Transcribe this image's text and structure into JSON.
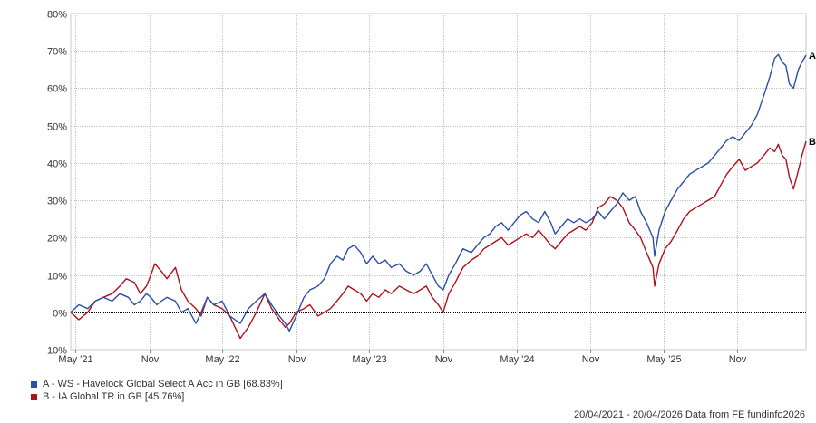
{
  "chart_data": {
    "type": "line",
    "title": "",
    "xlabel": "",
    "ylabel": "",
    "ylim": [
      -10,
      80
    ],
    "y_unit": "%",
    "yticks": [
      -10,
      0,
      10,
      20,
      30,
      40,
      50,
      60,
      70,
      80
    ],
    "ytick_labels": [
      "-10%",
      "0%",
      "10%",
      "20%",
      "30%",
      "40%",
      "50%",
      "60%",
      "70%",
      "80%"
    ],
    "xlim": [
      "2021-04-20",
      "2026-04-20"
    ],
    "xticks": [
      {
        "date": "2021-05-01",
        "label": "May '21"
      },
      {
        "date": "2021-11-01",
        "label": "Nov"
      },
      {
        "date": "2022-05-01",
        "label": "May '22"
      },
      {
        "date": "2022-11-01",
        "label": "Nov"
      },
      {
        "date": "2023-05-01",
        "label": "May '23"
      },
      {
        "date": "2023-11-01",
        "label": "Nov"
      },
      {
        "date": "2024-05-01",
        "label": "May '24"
      },
      {
        "date": "2024-11-01",
        "label": "Nov"
      },
      {
        "date": "2025-05-01",
        "label": "May '25"
      },
      {
        "date": "2025-11-01",
        "label": "Nov"
      }
    ],
    "grid": true,
    "zero_line": true,
    "legend_position": "bottom-left",
    "series": [
      {
        "name": "A - WS - Havelock Global Select A Acc in GB [68.83%]",
        "end_marker": "A",
        "color": "#2a4fa8",
        "points": [
          [
            "2021-04-20",
            0
          ],
          [
            "2021-05-10",
            2
          ],
          [
            "2021-06-01",
            1
          ],
          [
            "2021-06-20",
            3
          ],
          [
            "2021-07-10",
            4
          ],
          [
            "2021-08-01",
            3
          ],
          [
            "2021-08-20",
            5
          ],
          [
            "2021-09-10",
            4
          ],
          [
            "2021-09-25",
            2
          ],
          [
            "2021-10-10",
            3
          ],
          [
            "2021-10-25",
            5
          ],
          [
            "2021-11-05",
            4
          ],
          [
            "2021-11-20",
            2
          ],
          [
            "2021-12-01",
            3
          ],
          [
            "2021-12-15",
            4
          ],
          [
            "2022-01-05",
            3
          ],
          [
            "2022-01-20",
            0
          ],
          [
            "2022-02-05",
            1
          ],
          [
            "2022-02-25",
            -3
          ],
          [
            "2022-03-10",
            0
          ],
          [
            "2022-03-25",
            4
          ],
          [
            "2022-04-10",
            2
          ],
          [
            "2022-05-01",
            3
          ],
          [
            "2022-05-20",
            -1
          ],
          [
            "2022-06-15",
            -3
          ],
          [
            "2022-07-05",
            1
          ],
          [
            "2022-07-25",
            3
          ],
          [
            "2022-08-15",
            5
          ],
          [
            "2022-09-01",
            2
          ],
          [
            "2022-09-20",
            -1
          ],
          [
            "2022-10-05",
            -3
          ],
          [
            "2022-10-15",
            -5
          ],
          [
            "2022-11-01",
            -1
          ],
          [
            "2022-11-20",
            4
          ],
          [
            "2022-12-05",
            6
          ],
          [
            "2022-12-25",
            7
          ],
          [
            "2023-01-10",
            9
          ],
          [
            "2023-01-25",
            13
          ],
          [
            "2023-02-10",
            15
          ],
          [
            "2023-02-25",
            14
          ],
          [
            "2023-03-10",
            17
          ],
          [
            "2023-03-25",
            18
          ],
          [
            "2023-04-10",
            16
          ],
          [
            "2023-04-25",
            13
          ],
          [
            "2023-05-10",
            15
          ],
          [
            "2023-05-25",
            13
          ],
          [
            "2023-06-10",
            14
          ],
          [
            "2023-06-25",
            12
          ],
          [
            "2023-07-15",
            13
          ],
          [
            "2023-08-01",
            11
          ],
          [
            "2023-08-20",
            10
          ],
          [
            "2023-09-05",
            11
          ],
          [
            "2023-09-20",
            13
          ],
          [
            "2023-10-05",
            10
          ],
          [
            "2023-10-20",
            7
          ],
          [
            "2023-11-01",
            6
          ],
          [
            "2023-11-15",
            10
          ],
          [
            "2023-12-01",
            13
          ],
          [
            "2023-12-20",
            17
          ],
          [
            "2024-01-10",
            16
          ],
          [
            "2024-01-25",
            18
          ],
          [
            "2024-02-10",
            20
          ],
          [
            "2024-02-25",
            21
          ],
          [
            "2024-03-10",
            23
          ],
          [
            "2024-03-25",
            24
          ],
          [
            "2024-04-10",
            22
          ],
          [
            "2024-04-25",
            24
          ],
          [
            "2024-05-10",
            26
          ],
          [
            "2024-05-25",
            27
          ],
          [
            "2024-06-10",
            25
          ],
          [
            "2024-06-25",
            24
          ],
          [
            "2024-07-10",
            27
          ],
          [
            "2024-07-25",
            24
          ],
          [
            "2024-08-05",
            21
          ],
          [
            "2024-08-20",
            23
          ],
          [
            "2024-09-05",
            25
          ],
          [
            "2024-09-20",
            24
          ],
          [
            "2024-10-05",
            25
          ],
          [
            "2024-10-20",
            24
          ],
          [
            "2024-11-05",
            25
          ],
          [
            "2024-11-20",
            27
          ],
          [
            "2024-12-05",
            25
          ],
          [
            "2024-12-20",
            27
          ],
          [
            "2025-01-05",
            29
          ],
          [
            "2025-01-20",
            32
          ],
          [
            "2025-02-05",
            30
          ],
          [
            "2025-02-20",
            31
          ],
          [
            "2025-03-05",
            27
          ],
          [
            "2025-03-20",
            24
          ],
          [
            "2025-04-05",
            20
          ],
          [
            "2025-04-09",
            15
          ],
          [
            "2025-04-20",
            22
          ],
          [
            "2025-05-05",
            27
          ],
          [
            "2025-05-20",
            30
          ],
          [
            "2025-06-05",
            33
          ],
          [
            "2025-06-20",
            35
          ],
          [
            "2025-07-05",
            37
          ],
          [
            "2025-07-20",
            38
          ],
          [
            "2025-08-05",
            39
          ],
          [
            "2025-08-20",
            40
          ],
          [
            "2025-09-05",
            42
          ],
          [
            "2025-09-20",
            44
          ],
          [
            "2025-10-05",
            46
          ],
          [
            "2025-10-20",
            47
          ],
          [
            "2025-11-05",
            46
          ],
          [
            "2025-11-20",
            48
          ],
          [
            "2025-12-05",
            50
          ],
          [
            "2025-12-20",
            53
          ],
          [
            "2026-01-05",
            58
          ],
          [
            "2026-01-20",
            63
          ],
          [
            "2026-02-01",
            68
          ],
          [
            "2026-02-10",
            69
          ],
          [
            "2026-02-20",
            67
          ],
          [
            "2026-03-01",
            66
          ],
          [
            "2026-03-10",
            61
          ],
          [
            "2026-03-20",
            60
          ],
          [
            "2026-04-01",
            65
          ],
          [
            "2026-04-10",
            67
          ],
          [
            "2026-04-20",
            68.83
          ]
        ]
      },
      {
        "name": "B - IA Global TR in GB [45.76%]",
        "end_marker": "B",
        "color": "#b0111e",
        "points": [
          [
            "2021-04-20",
            0
          ],
          [
            "2021-05-10",
            -2
          ],
          [
            "2021-06-01",
            0
          ],
          [
            "2021-06-20",
            3
          ],
          [
            "2021-07-10",
            4
          ],
          [
            "2021-08-01",
            5
          ],
          [
            "2021-08-20",
            7
          ],
          [
            "2021-09-05",
            9
          ],
          [
            "2021-09-25",
            8
          ],
          [
            "2021-10-10",
            5
          ],
          [
            "2021-10-25",
            7
          ],
          [
            "2021-11-05",
            10
          ],
          [
            "2021-11-15",
            13
          ],
          [
            "2021-12-01",
            11
          ],
          [
            "2021-12-15",
            9
          ],
          [
            "2022-01-05",
            12
          ],
          [
            "2022-01-20",
            6
          ],
          [
            "2022-02-05",
            3
          ],
          [
            "2022-02-25",
            1
          ],
          [
            "2022-03-10",
            -1
          ],
          [
            "2022-03-25",
            4
          ],
          [
            "2022-04-10",
            2
          ],
          [
            "2022-05-01",
            1
          ],
          [
            "2022-05-20",
            -1
          ],
          [
            "2022-06-15",
            -7
          ],
          [
            "2022-07-05",
            -4
          ],
          [
            "2022-07-25",
            0
          ],
          [
            "2022-08-15",
            5
          ],
          [
            "2022-09-01",
            1
          ],
          [
            "2022-09-20",
            -2
          ],
          [
            "2022-10-05",
            -4
          ],
          [
            "2022-10-15",
            -3
          ],
          [
            "2022-11-01",
            0
          ],
          [
            "2022-11-20",
            1
          ],
          [
            "2022-12-05",
            2
          ],
          [
            "2022-12-25",
            -1
          ],
          [
            "2023-01-10",
            0
          ],
          [
            "2023-01-25",
            1
          ],
          [
            "2023-02-10",
            3
          ],
          [
            "2023-02-25",
            5
          ],
          [
            "2023-03-10",
            7
          ],
          [
            "2023-03-25",
            6
          ],
          [
            "2023-04-10",
            5
          ],
          [
            "2023-04-25",
            3
          ],
          [
            "2023-05-10",
            5
          ],
          [
            "2023-05-25",
            4
          ],
          [
            "2023-06-10",
            6
          ],
          [
            "2023-06-25",
            5
          ],
          [
            "2023-07-15",
            7
          ],
          [
            "2023-08-01",
            6
          ],
          [
            "2023-08-20",
            5
          ],
          [
            "2023-09-05",
            6
          ],
          [
            "2023-09-20",
            7
          ],
          [
            "2023-10-05",
            4
          ],
          [
            "2023-10-20",
            2
          ],
          [
            "2023-11-01",
            0
          ],
          [
            "2023-11-15",
            5
          ],
          [
            "2023-12-01",
            8
          ],
          [
            "2023-12-20",
            12
          ],
          [
            "2024-01-10",
            14
          ],
          [
            "2024-01-25",
            15
          ],
          [
            "2024-02-10",
            17
          ],
          [
            "2024-02-25",
            18
          ],
          [
            "2024-03-10",
            19
          ],
          [
            "2024-03-25",
            20
          ],
          [
            "2024-04-10",
            18
          ],
          [
            "2024-04-25",
            19
          ],
          [
            "2024-05-10",
            20
          ],
          [
            "2024-05-25",
            21
          ],
          [
            "2024-06-10",
            20
          ],
          [
            "2024-06-25",
            22
          ],
          [
            "2024-07-10",
            20
          ],
          [
            "2024-07-25",
            18
          ],
          [
            "2024-08-05",
            17
          ],
          [
            "2024-08-20",
            19
          ],
          [
            "2024-09-05",
            21
          ],
          [
            "2024-09-20",
            22
          ],
          [
            "2024-10-05",
            23
          ],
          [
            "2024-10-20",
            22
          ],
          [
            "2024-11-05",
            24
          ],
          [
            "2024-11-20",
            28
          ],
          [
            "2024-12-05",
            29
          ],
          [
            "2024-12-20",
            31
          ],
          [
            "2025-01-05",
            30
          ],
          [
            "2025-01-20",
            28
          ],
          [
            "2025-02-05",
            24
          ],
          [
            "2025-02-20",
            22
          ],
          [
            "2025-03-05",
            20
          ],
          [
            "2025-03-20",
            16
          ],
          [
            "2025-04-05",
            12
          ],
          [
            "2025-04-09",
            7
          ],
          [
            "2025-04-20",
            13
          ],
          [
            "2025-05-05",
            17
          ],
          [
            "2025-05-20",
            19
          ],
          [
            "2025-06-05",
            22
          ],
          [
            "2025-06-20",
            25
          ],
          [
            "2025-07-05",
            27
          ],
          [
            "2025-07-20",
            28
          ],
          [
            "2025-08-05",
            29
          ],
          [
            "2025-08-20",
            30
          ],
          [
            "2025-09-05",
            31
          ],
          [
            "2025-09-20",
            34
          ],
          [
            "2025-10-05",
            37
          ],
          [
            "2025-10-20",
            39
          ],
          [
            "2025-11-05",
            41
          ],
          [
            "2025-11-20",
            38
          ],
          [
            "2025-12-05",
            39
          ],
          [
            "2025-12-20",
            40
          ],
          [
            "2026-01-05",
            42
          ],
          [
            "2026-01-20",
            44
          ],
          [
            "2026-02-01",
            43
          ],
          [
            "2026-02-10",
            45
          ],
          [
            "2026-02-20",
            42
          ],
          [
            "2026-03-01",
            41
          ],
          [
            "2026-03-10",
            36
          ],
          [
            "2026-03-20",
            33
          ],
          [
            "2026-04-01",
            38
          ],
          [
            "2026-04-10",
            42
          ],
          [
            "2026-04-20",
            45.76
          ]
        ]
      }
    ]
  },
  "footer": {
    "text": "20/04/2021 - 20/04/2026 Data from FE fundinfo2026"
  }
}
